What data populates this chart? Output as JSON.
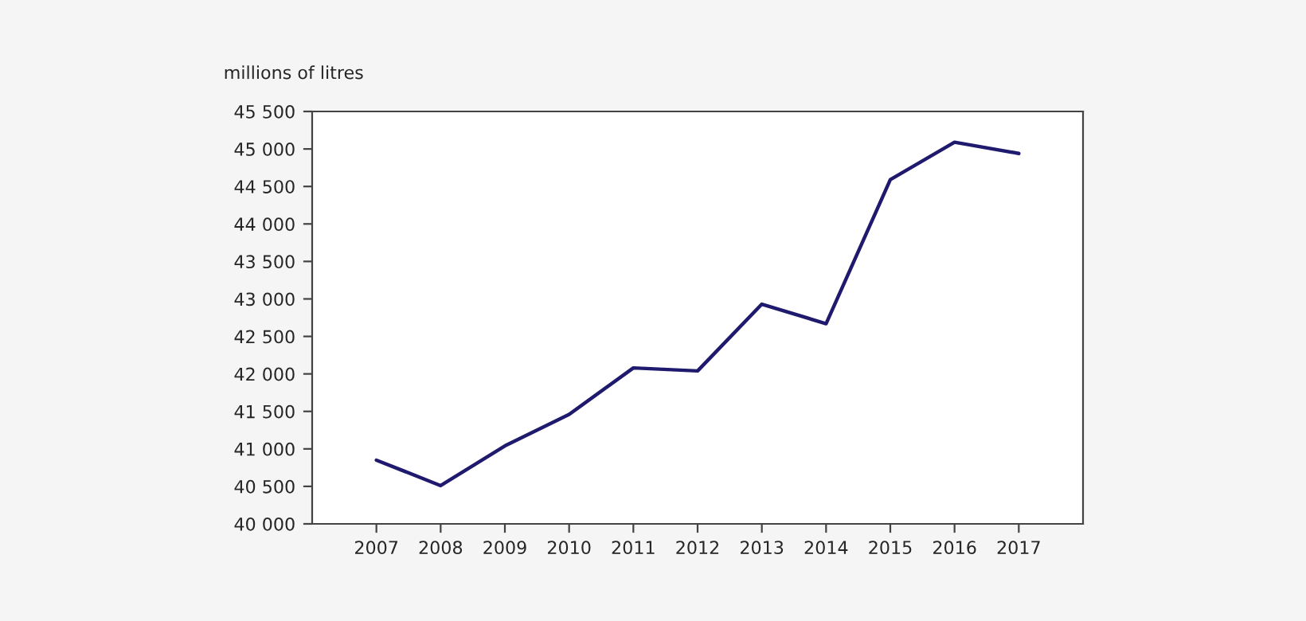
{
  "chart_data": {
    "type": "line",
    "ylabel": "millions of litres",
    "categories": [
      "2007",
      "2008",
      "2009",
      "2010",
      "2011",
      "2012",
      "2013",
      "2014",
      "2015",
      "2016",
      "2017"
    ],
    "series": [
      {
        "color": "#1f1a6e",
        "values": [
          40850,
          40510,
          41040,
          41460,
          42080,
          42040,
          42930,
          42670,
          44590,
          45090,
          44940
        ]
      }
    ],
    "ylim": [
      40000,
      45500
    ],
    "yticks": [
      {
        "value": 40000,
        "label": "40 000"
      },
      {
        "value": 40500,
        "label": "40 500"
      },
      {
        "value": 41000,
        "label": "41 000"
      },
      {
        "value": 41500,
        "label": "41 500"
      },
      {
        "value": 42000,
        "label": "42 000"
      },
      {
        "value": 42500,
        "label": "42 500"
      },
      {
        "value": 43000,
        "label": "43 000"
      },
      {
        "value": 43500,
        "label": "43 500"
      },
      {
        "value": 44000,
        "label": "44 000"
      },
      {
        "value": 44500,
        "label": "44 500"
      },
      {
        "value": 45000,
        "label": "45 000"
      },
      {
        "value": 45500,
        "label": "45 500"
      }
    ],
    "grid": false,
    "legend": false,
    "marker": "none",
    "line_style": "solid"
  }
}
